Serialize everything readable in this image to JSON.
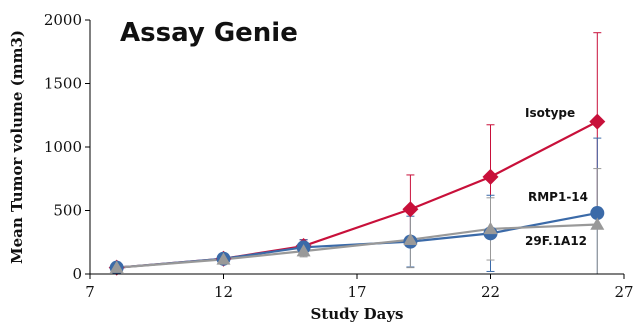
{
  "chart_data": {
    "type": "line",
    "title": "",
    "watermark": "Assay Genie",
    "xlabel": "Study Days",
    "ylabel": "Mean Tumor volume (mm3)",
    "xlim": [
      7,
      27
    ],
    "ylim": [
      0,
      2000
    ],
    "xticks": [
      7,
      12,
      17,
      22,
      27
    ],
    "yticks": [
      0,
      500,
      1000,
      1500,
      2000
    ],
    "grid": false,
    "series": [
      {
        "name": "Isotype",
        "color": "#c8103a",
        "marker": "diamond",
        "x": [
          8,
          12,
          15,
          19,
          22,
          26
        ],
        "y": [
          50,
          120,
          220,
          510,
          765,
          1200
        ],
        "err": [
          15,
          20,
          50,
          270,
          410,
          700
        ]
      },
      {
        "name": "RMP1-14",
        "color": "#3b6aa8",
        "marker": "circle",
        "x": [
          8,
          12,
          15,
          19,
          22,
          26
        ],
        "y": [
          50,
          120,
          210,
          255,
          320,
          480
        ],
        "err": [
          15,
          20,
          60,
          200,
          300,
          590
        ]
      },
      {
        "name": "29F.1A12",
        "color": "#999999",
        "marker": "triangle",
        "x": [
          8,
          12,
          15,
          19,
          22,
          26
        ],
        "y": [
          50,
          115,
          180,
          270,
          355,
          390
        ],
        "err": [
          15,
          20,
          45,
          220,
          245,
          440
        ]
      }
    ]
  }
}
